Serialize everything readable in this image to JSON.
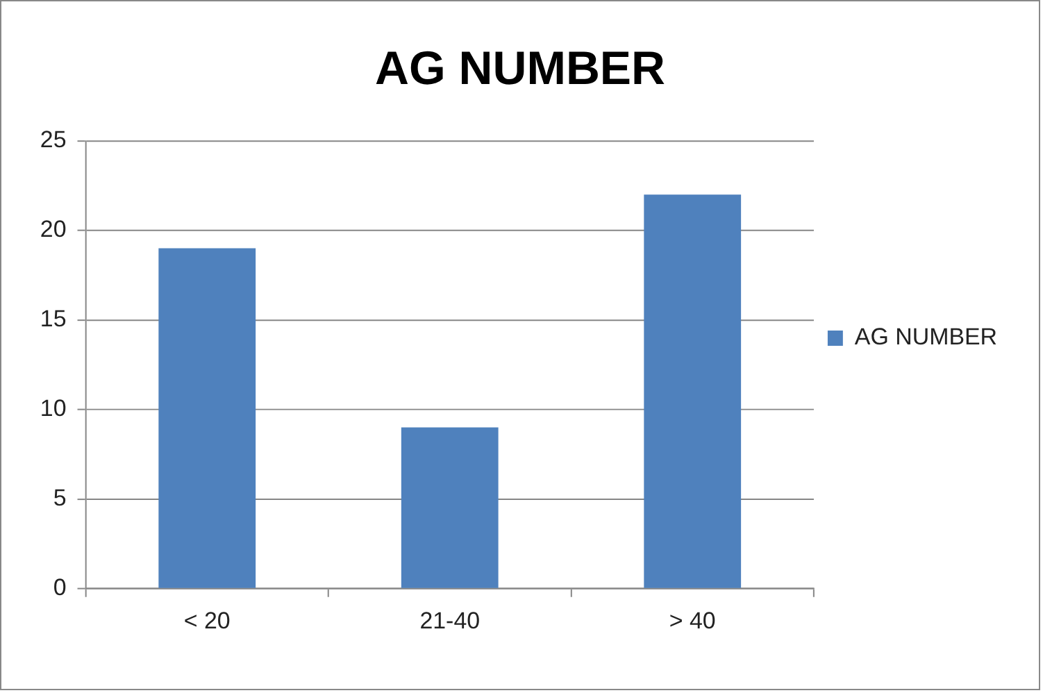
{
  "chart_data": {
    "type": "bar",
    "title": "AG NUMBER",
    "categories": [
      "< 20",
      "21-40",
      "> 40"
    ],
    "series": [
      {
        "name": "AG NUMBER",
        "color": "#4f81bd",
        "values": [
          19,
          9,
          22
        ]
      }
    ],
    "ylim": [
      0,
      25
    ],
    "yticks": [
      0,
      5,
      10,
      15,
      20,
      25
    ],
    "grid": "y",
    "legend": "right"
  }
}
